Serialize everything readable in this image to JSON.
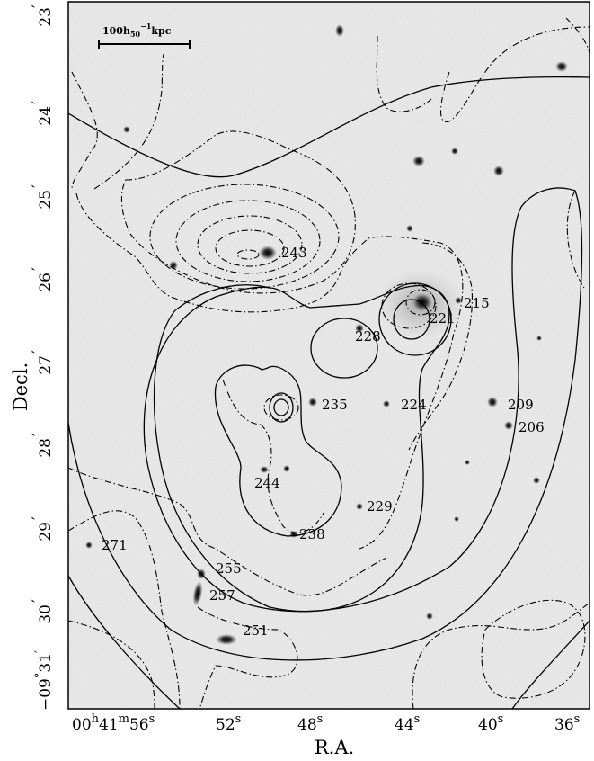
{
  "axes": {
    "xlabel": "R.A.",
    "ylabel": "Decl.",
    "dec_ticks": [
      {
        "arcmin": "23",
        "arcmin_unit": "′"
      },
      {
        "arcmin": "24",
        "arcmin_unit": "′"
      },
      {
        "arcmin": "25",
        "arcmin_unit": "′"
      },
      {
        "arcmin": "26",
        "arcmin_unit": "′"
      },
      {
        "arcmin": "27",
        "arcmin_unit": "′"
      },
      {
        "arcmin": "28",
        "arcmin_unit": "′"
      },
      {
        "arcmin": "29",
        "arcmin_unit": "′"
      },
      {
        "arcmin": "30",
        "arcmin_unit": "′"
      }
    ],
    "dec_origin": {
      "deg": "−09",
      "deg_unit": "°",
      "arcmin": "31",
      "arcmin_unit": "′"
    },
    "ra_origin": {
      "h": "00",
      "h_unit": "h",
      "m": "41",
      "m_unit": "m",
      "s": "56",
      "s_unit": "s"
    },
    "ra_ticks": [
      {
        "s": "52",
        "unit": "s"
      },
      {
        "s": "48",
        "unit": "s"
      },
      {
        "s": "44",
        "unit": "s"
      },
      {
        "s": "40",
        "unit": "s"
      },
      {
        "s": "36",
        "unit": "s"
      }
    ]
  },
  "scale_bar": {
    "value": "100",
    "h": "h",
    "h_sub": "50",
    "h_sup": "−1",
    "unit": "kpc"
  },
  "galaxy_labels": [
    "243",
    "215",
    "221",
    "228",
    "235",
    "224",
    "209",
    "206",
    "244",
    "229",
    "238",
    "271",
    "255",
    "257",
    "251"
  ],
  "colors": {
    "background": "#ececec",
    "ink": "#000000"
  }
}
